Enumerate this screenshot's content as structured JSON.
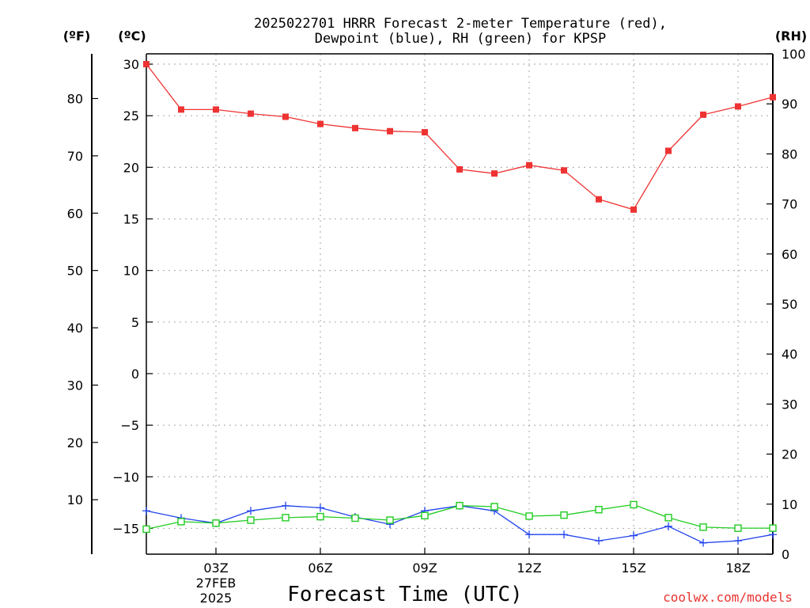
{
  "chart_data": {
    "type": "line",
    "title_lines": [
      "2025022701 HRRR Forecast 2-meter Temperature (red),",
      "Dewpoint (blue), RH (green) for KPSP"
    ],
    "xlabel": "Forecast Time (UTC)",
    "left_unit_f": "(ºF)",
    "left_unit_c": "(ºC)",
    "right_unit": "(RH)",
    "credit": "coolwx.com/models",
    "x_hours": [
      1,
      2,
      3,
      4,
      5,
      6,
      7,
      8,
      9,
      10,
      11,
      12,
      13,
      14,
      15,
      16,
      17,
      18,
      19
    ],
    "x_range": [
      1,
      19
    ],
    "x_ticks": [
      {
        "hour": 3,
        "label": "03Z",
        "extra": [
          "27FEB",
          "2025"
        ]
      },
      {
        "hour": 6,
        "label": "06Z"
      },
      {
        "hour": 9,
        "label": "09Z"
      },
      {
        "hour": 12,
        "label": "12Z"
      },
      {
        "hour": 15,
        "label": "15Z"
      },
      {
        "hour": 18,
        "label": "18Z"
      }
    ],
    "c_range": [
      -17.5,
      31
    ],
    "c_ticks": [
      30,
      25,
      20,
      15,
      10,
      5,
      0,
      -5,
      -10,
      -15
    ],
    "c_tick_labels": [
      "30",
      "25",
      "20",
      "15",
      "10",
      "5",
      "0",
      "−5",
      "−10",
      "−15"
    ],
    "f_ticks": [
      80,
      70,
      60,
      50,
      40,
      30,
      20,
      10
    ],
    "rh_range": [
      0,
      100
    ],
    "rh_ticks": [
      0,
      10,
      20,
      30,
      40,
      50,
      60,
      70,
      80,
      90,
      100
    ],
    "grid": true,
    "series": [
      {
        "name": "Temperature",
        "unit": "C",
        "color": "#ee3333",
        "marker": "filled-square",
        "values": [
          30.0,
          25.6,
          25.6,
          25.2,
          24.9,
          24.2,
          23.8,
          23.5,
          23.4,
          19.8,
          19.4,
          20.2,
          19.7,
          16.9,
          15.9,
          21.6,
          25.1,
          25.9,
          26.8
        ]
      },
      {
        "name": "Dewpoint",
        "unit": "C",
        "color": "#2244ee",
        "marker": "plus",
        "values": [
          -13.3,
          -14.0,
          -14.5,
          -13.3,
          -12.8,
          -13.0,
          -13.9,
          -14.6,
          -13.3,
          -12.8,
          -13.3,
          -15.6,
          -15.6,
          -16.2,
          -15.7,
          -14.8,
          -16.4,
          -16.2,
          -15.6
        ]
      },
      {
        "name": "RH",
        "unit": "%",
        "color": "#22cc22",
        "marker": "open-square",
        "values": [
          5.0,
          6.5,
          6.2,
          6.8,
          7.3,
          7.5,
          7.2,
          6.8,
          7.7,
          9.7,
          9.5,
          7.6,
          7.8,
          8.9,
          9.9,
          7.3,
          5.4,
          5.2,
          5.2
        ]
      }
    ]
  }
}
